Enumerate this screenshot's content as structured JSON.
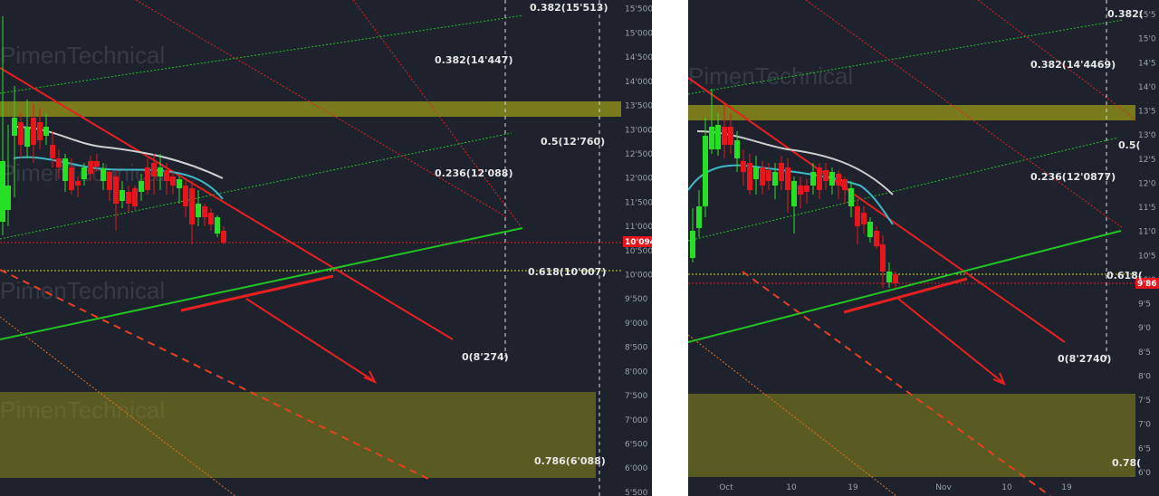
{
  "colors": {
    "background": "#1e222d",
    "divider": "#ffffff",
    "bull": "#26e026",
    "bear": "#e8161c",
    "zone": "#8a8a1a",
    "trend_red": "#e82020",
    "trend_green": "#22c422",
    "fib_text": "#e6e6e6"
  },
  "watermark": "PimenTechnical",
  "chart_data": [
    {
      "type": "candlestick",
      "title": "",
      "price_ticks": [
        "15'500",
        "15'000",
        "14'500",
        "14'000",
        "13'500",
        "13'000",
        "12'500",
        "12'000",
        "11'500",
        "11'000",
        "10'500",
        "10'000",
        "9'500",
        "9'000",
        "8'500",
        "8'000",
        "7'500",
        "7'000",
        "6'500",
        "6'000",
        "5'500"
      ],
      "current_price_label": "10'094",
      "fib_labels": [
        "0.382(15'513)",
        "0.382(14'447)",
        "0.5(12'760)",
        "0.236(12'088)",
        "0.618(10'007)",
        "0(8'274)",
        "0.786(6'088)"
      ],
      "zones": [
        {
          "name": "resistance",
          "range": [
            13250,
            13580
          ]
        },
        {
          "name": "support",
          "range": [
            5730,
            7570
          ]
        }
      ],
      "ylim": [
        5450,
        15600
      ]
    },
    {
      "type": "candlestick",
      "title": "",
      "price_ticks": [
        "15'5",
        "15'0",
        "14'5",
        "14'0",
        "13'5",
        "13'0",
        "12'5",
        "12'0",
        "11'5",
        "11'0",
        "10'5",
        "10'0",
        "9'5",
        "9'0",
        "8'5",
        "8'0",
        "7'5",
        "7'0",
        "6'5",
        "6'0"
      ],
      "current_price_label": "9'86",
      "date_ticks": [
        "Oct",
        "10",
        "19",
        "Nov",
        "10",
        "19"
      ],
      "fib_labels": [
        "0.382(",
        "0.382(14'4469)",
        "0.5(",
        "0.236(12'0877)",
        "0.618(",
        "0(8'2740)",
        "0.78("
      ],
      "zones": [
        {
          "name": "resistance",
          "range": [
            13250,
            13580
          ]
        },
        {
          "name": "support",
          "range": [
            5730,
            7570
          ]
        }
      ],
      "ylim": [
        5850,
        15650
      ]
    }
  ]
}
